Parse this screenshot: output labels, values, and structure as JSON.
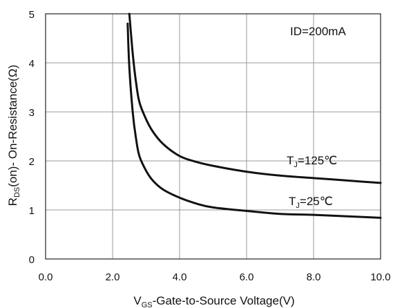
{
  "chart_data": {
    "type": "line",
    "xlabel_main": "V",
    "xlabel_sub": "GS",
    "xlabel_rest": "-Gate-to-Source  Voltage(V)",
    "ylabel_main": "R",
    "ylabel_sub": "DS",
    "ylabel_rest": "(on)- On-Resistance(Ω)",
    "annotation": "ID=200mA",
    "xlim": [
      0,
      10
    ],
    "ylim": [
      0,
      5
    ],
    "x_ticks": [
      "0.0",
      "2.0",
      "4.0",
      "6.0",
      "8.0",
      "10.0"
    ],
    "y_ticks": [
      "0",
      "1",
      "2",
      "3",
      "4",
      "5"
    ],
    "grid": true,
    "series": [
      {
        "label_main": "T",
        "label_sub": "J",
        "label_rest": "=125℃",
        "x": [
          2.5,
          2.6,
          2.7,
          2.8,
          3.0,
          3.2,
          3.5,
          4.0,
          4.5,
          5.0,
          6.0,
          7.0,
          8.0,
          9.0,
          10.0
        ],
        "y": [
          5.0,
          4.2,
          3.6,
          3.2,
          2.85,
          2.6,
          2.35,
          2.1,
          1.98,
          1.9,
          1.78,
          1.7,
          1.65,
          1.6,
          1.55
        ]
      },
      {
        "label_main": "T",
        "label_sub": "J",
        "label_rest": "=25℃",
        "x": [
          2.45,
          2.5,
          2.6,
          2.7,
          2.8,
          3.0,
          3.2,
          3.5,
          4.0,
          4.5,
          5.0,
          6.0,
          7.0,
          8.0,
          9.0,
          10.0
        ],
        "y": [
          4.8,
          3.9,
          3.0,
          2.45,
          2.1,
          1.8,
          1.6,
          1.42,
          1.25,
          1.13,
          1.05,
          0.98,
          0.92,
          0.9,
          0.87,
          0.84
        ]
      }
    ]
  }
}
